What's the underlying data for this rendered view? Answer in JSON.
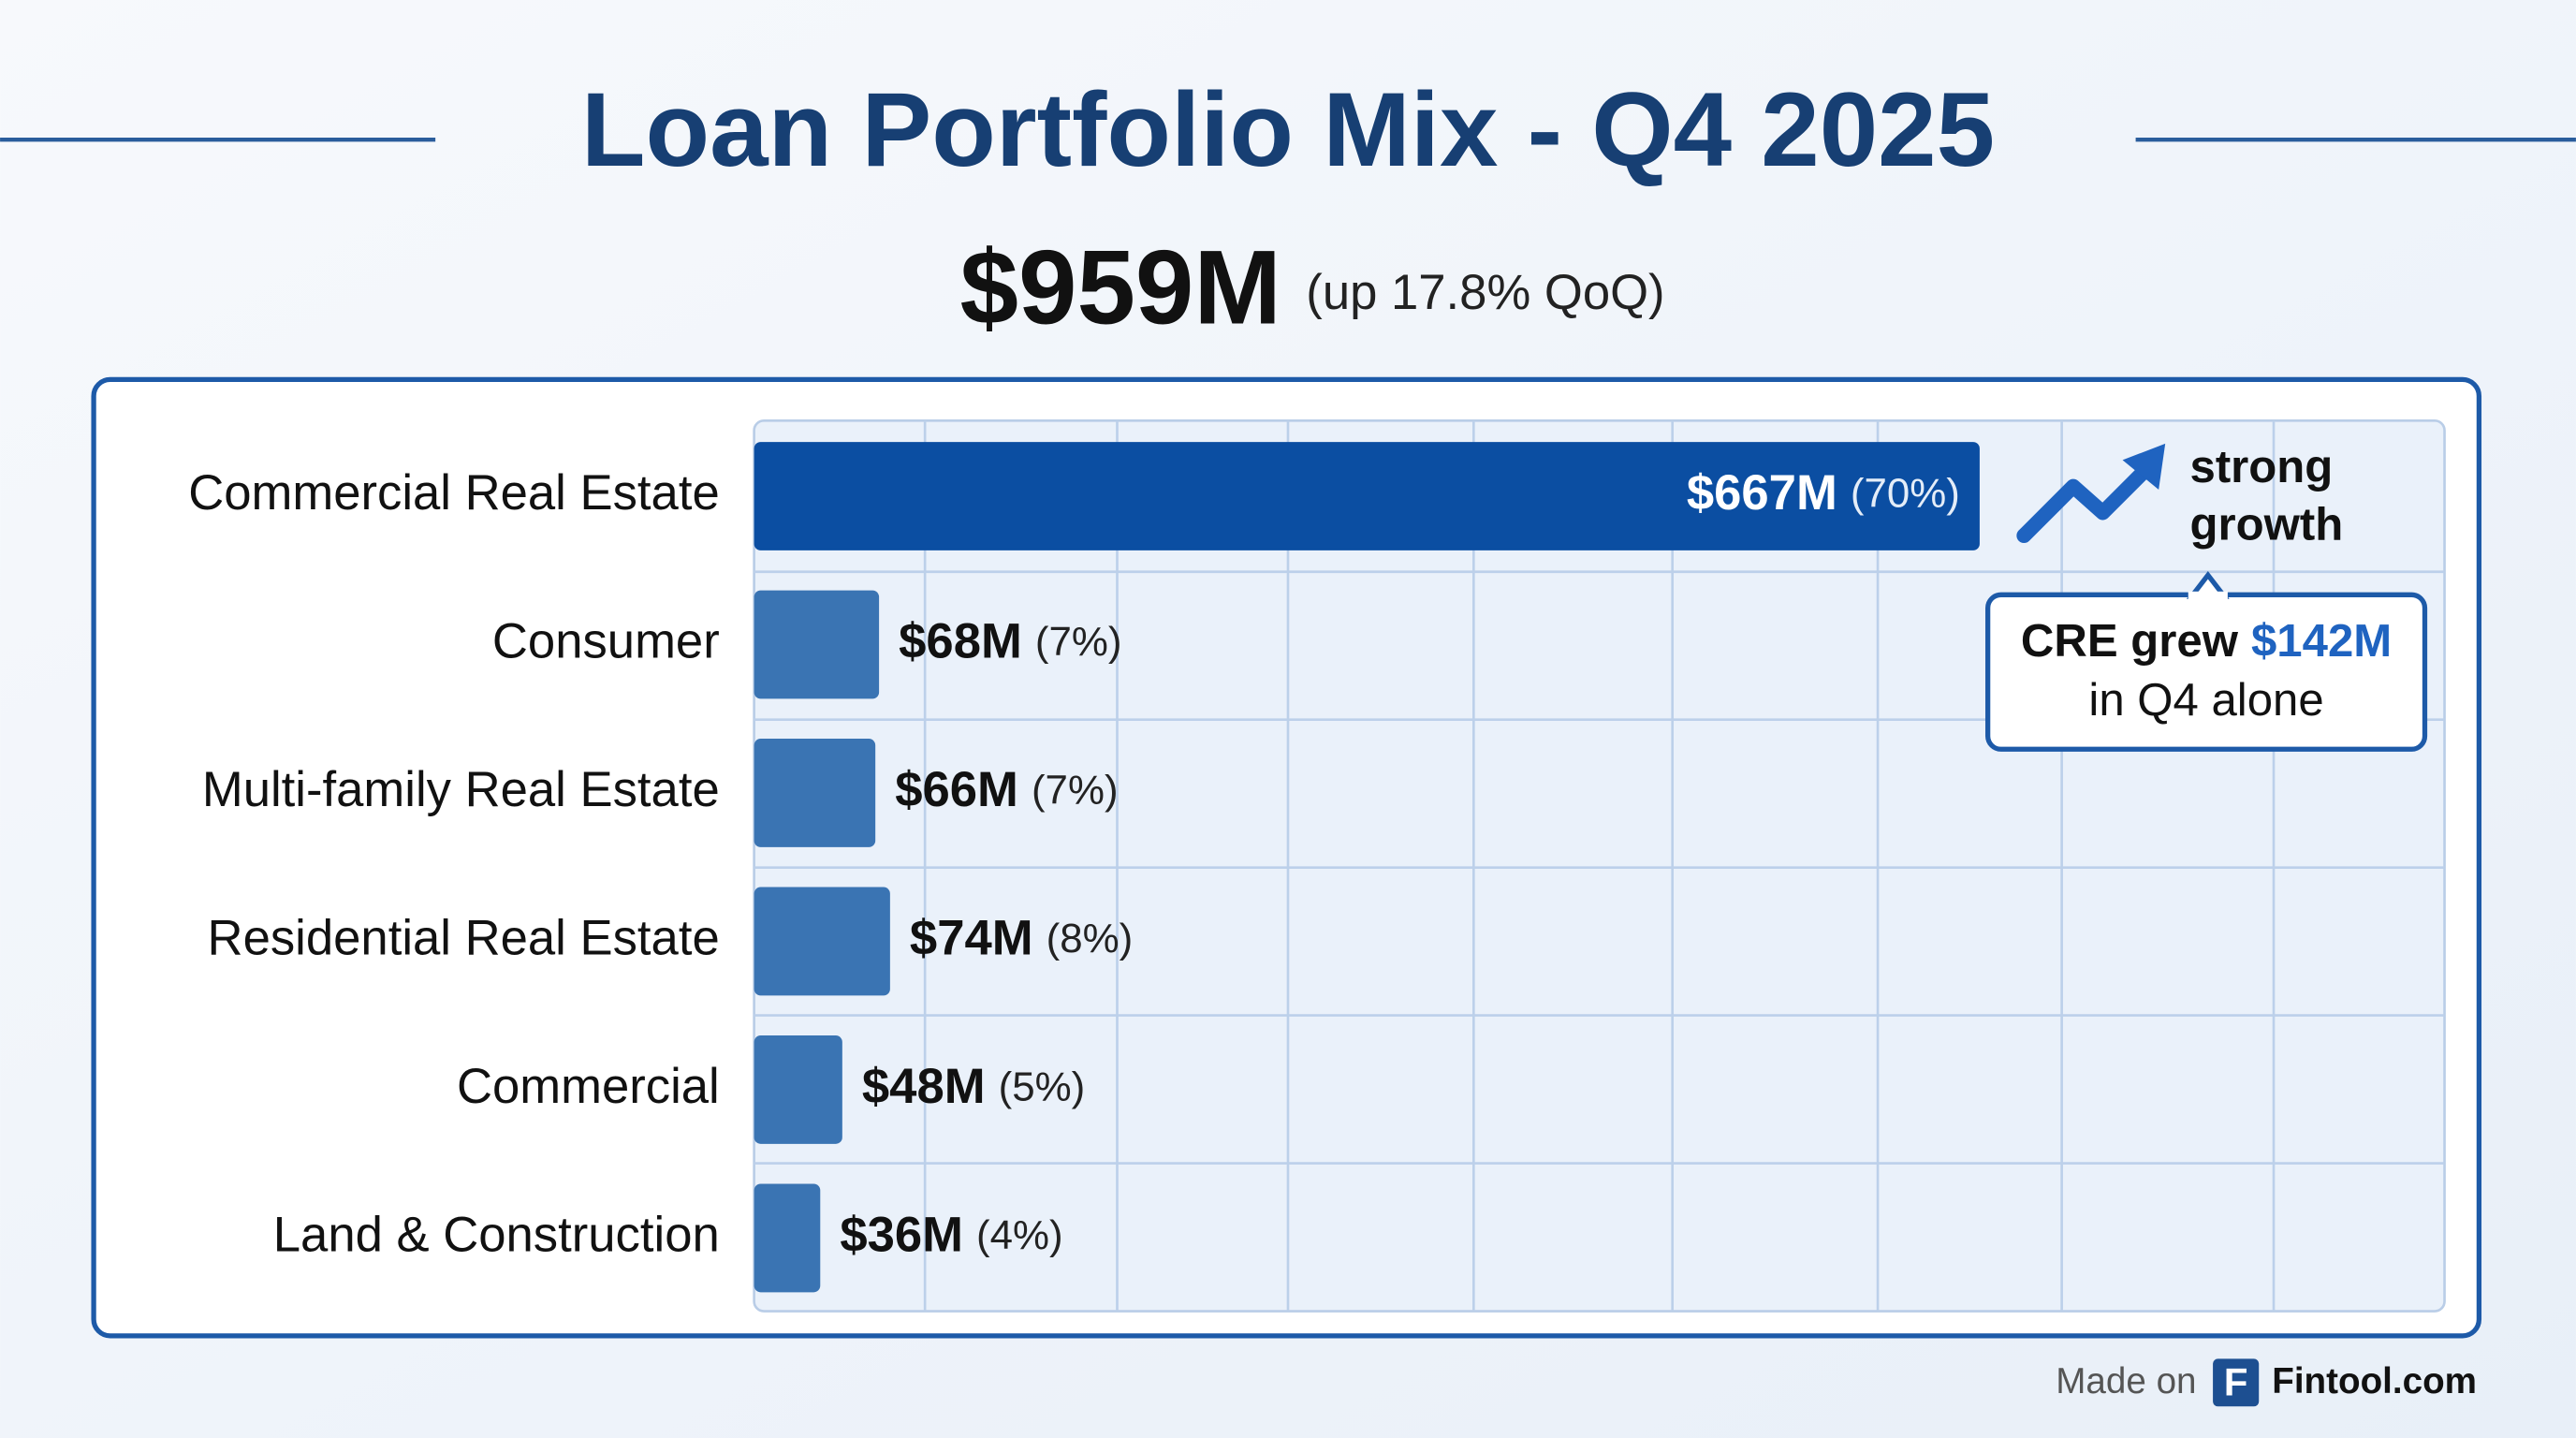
{
  "chart_data": {
    "type": "bar",
    "orientation": "horizontal",
    "title": "Loan Portfolio Mix - Q4 2025",
    "headline": "$959M",
    "subtitle": "(up 17.8% QoQ)",
    "categories": [
      "Commercial Real Estate",
      "Consumer",
      "Multi-family Real Estate",
      "Residential Real Estate",
      "Commercial",
      "Land & Construction"
    ],
    "values": [
      667,
      68,
      66,
      74,
      48,
      36
    ],
    "value_labels": [
      "$667M",
      "$68M",
      "$66M",
      "$74M",
      "$48M",
      "$36M"
    ],
    "percent_labels": [
      "(70%)",
      "(7%)",
      "(7%)",
      "(8%)",
      "(5%)",
      "(4%)"
    ],
    "colors": [
      "#0b4ea2",
      "#3a74b3",
      "#3a74b3",
      "#3a74b3",
      "#3a74b3",
      "#3a74b3"
    ],
    "xlim": [
      0,
      920
    ],
    "annotation": [
      "strong",
      "growth"
    ],
    "callout": {
      "lead": "CRE grew",
      "amount": "$142M",
      "tail": "in Q4 alone"
    },
    "footer": {
      "prefix": "Made on",
      "logo": "F",
      "brand": "Fintool.com"
    }
  }
}
